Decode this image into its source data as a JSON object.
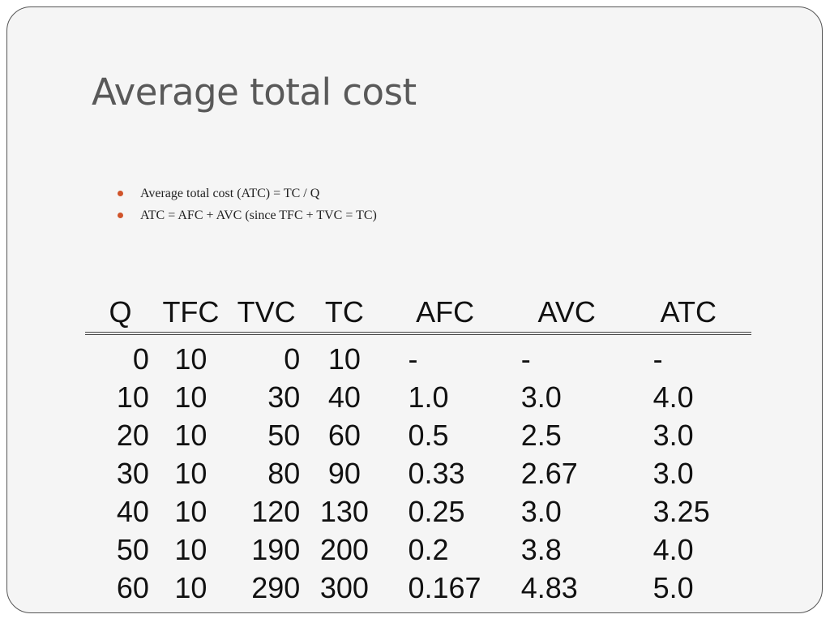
{
  "slide": {
    "title": "Average total cost",
    "bullets": [
      "Average total cost (ATC) = TC / Q",
      "ATC = AFC + AVC (since TFC + TVC = TC)"
    ],
    "accent_color": "#d0542a"
  },
  "table": {
    "headers": [
      "Q",
      "TFC",
      "TVC",
      "TC",
      "AFC",
      "AVC",
      "ATC"
    ],
    "rows": [
      [
        "0",
        "10",
        "0",
        "10",
        "-",
        "-",
        "-"
      ],
      [
        "10",
        "10",
        "30",
        "40",
        "1.0",
        "3.0",
        "4.0"
      ],
      [
        "20",
        "10",
        "50",
        "60",
        "0.5",
        "2.5",
        "3.0"
      ],
      [
        "30",
        "10",
        "80",
        "90",
        "0.33",
        "2.67",
        "3.0"
      ],
      [
        "40",
        "10",
        "120",
        "130",
        "0.25",
        "3.0",
        "3.25"
      ],
      [
        "50",
        "10",
        "190",
        "200",
        "0.2",
        "3.8",
        "4.0"
      ],
      [
        "60",
        "10",
        "290",
        "300",
        "0.167",
        "4.83",
        "5.0"
      ]
    ]
  }
}
